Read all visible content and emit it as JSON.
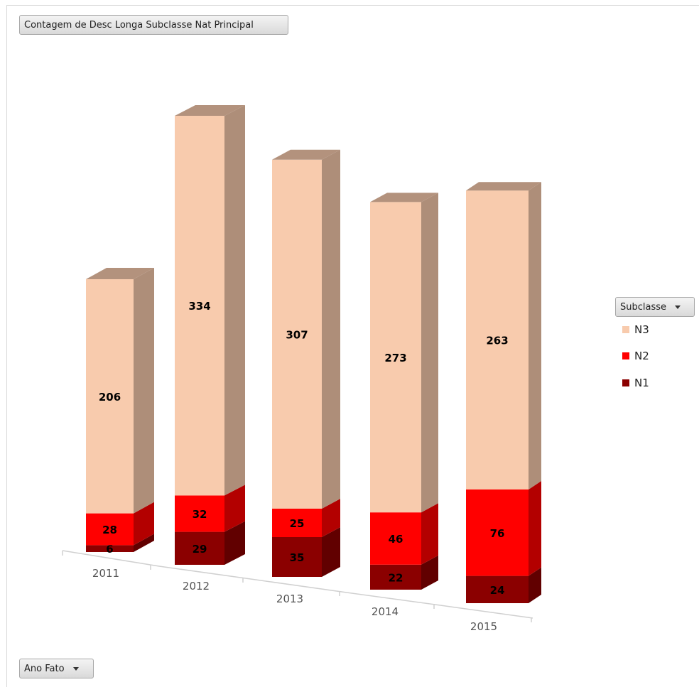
{
  "field_buttons": {
    "values_label": "Contagem de Desc Longa Subclasse Nat Principal",
    "legend_label": "Subclasse",
    "axis_label": "Ano Fato"
  },
  "legend": {
    "items": [
      {
        "name": "N3",
        "color": "#F8CBAD"
      },
      {
        "name": "N2",
        "color": "#FF0000"
      },
      {
        "name": "N1",
        "color": "#8B0000"
      }
    ]
  },
  "chart_data": {
    "type": "bar",
    "stacked": true,
    "three_d": true,
    "categories": [
      "2011",
      "2012",
      "2013",
      "2014",
      "2015"
    ],
    "series": [
      {
        "name": "N1",
        "values": [
          6,
          29,
          35,
          22,
          24
        ],
        "color": "#8B0000"
      },
      {
        "name": "N2",
        "values": [
          28,
          32,
          25,
          46,
          76
        ],
        "color": "#FF0000"
      },
      {
        "name": "N3",
        "values": [
          206,
          334,
          307,
          273,
          263
        ],
        "color": "#F8CBAD"
      }
    ],
    "legend_position": "right",
    "grid": false
  }
}
